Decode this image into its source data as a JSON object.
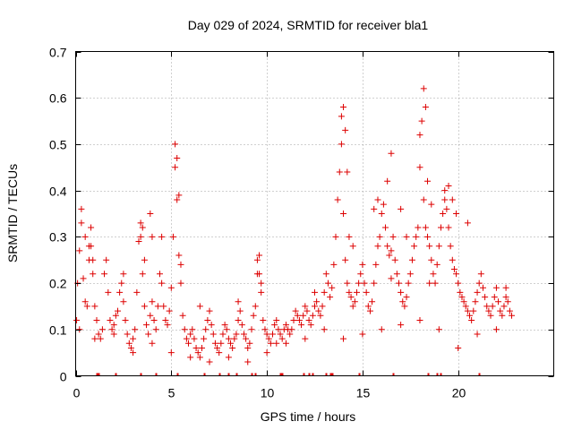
{
  "chart_data": {
    "type": "scatter",
    "title": "Day 029 of 2024, SRMTID for receiver bla1",
    "xlabel": "GPS time / hours",
    "ylabel": "SRMTID / TECUs",
    "xlim": [
      0,
      25
    ],
    "ylim": [
      0,
      0.7
    ],
    "x_ticks": [
      0,
      5,
      10,
      15,
      20
    ],
    "y_ticks": [
      0,
      0.1,
      0.2,
      0.3,
      0.4,
      0.5,
      0.6,
      0.7
    ],
    "x_tick_labels": [
      "0",
      "5",
      "10",
      "15",
      "20"
    ],
    "y_tick_labels": [
      "0",
      "0.1",
      "0.2",
      "0.3",
      "0.4",
      "0.5",
      "0.6",
      "0.7"
    ],
    "grid": true,
    "marker": "plus",
    "color": "#dd0000",
    "series": [
      {
        "name": "SRMTID",
        "x": [
          0.05,
          0.1,
          0.2,
          0.3,
          0.4,
          0.5,
          0.6,
          0.7,
          0.8,
          0.9,
          1.0,
          1.1,
          1.2,
          1.3,
          1.4,
          1.5,
          1.6,
          1.7,
          1.8,
          1.9,
          2.0,
          2.1,
          2.2,
          2.3,
          2.4,
          2.5,
          2.6,
          2.7,
          2.8,
          2.9,
          3.0,
          3.1,
          3.2,
          3.3,
          3.4,
          3.5,
          3.6,
          3.7,
          3.8,
          3.9,
          4.0,
          4.1,
          4.2,
          4.3,
          4.4,
          4.5,
          4.6,
          4.7,
          4.8,
          4.9,
          5.0,
          5.1,
          5.2,
          5.3,
          5.4,
          5.5,
          5.6,
          5.7,
          5.8,
          5.9,
          6.0,
          6.1,
          6.2,
          6.3,
          6.4,
          6.5,
          6.6,
          6.7,
          6.8,
          6.9,
          7.0,
          7.1,
          7.2,
          7.3,
          7.4,
          7.5,
          7.6,
          7.7,
          7.8,
          7.9,
          8.0,
          8.1,
          8.2,
          8.3,
          8.4,
          8.5,
          8.6,
          8.7,
          8.8,
          8.9,
          9.0,
          9.1,
          9.2,
          9.3,
          9.4,
          9.5,
          9.6,
          9.7,
          9.8,
          9.9,
          10.0,
          10.1,
          10.2,
          10.3,
          10.4,
          10.5,
          10.6,
          10.7,
          10.8,
          10.9,
          11.0,
          11.1,
          11.2,
          11.3,
          11.4,
          11.5,
          11.6,
          11.7,
          11.8,
          11.9,
          12.0,
          12.1,
          12.2,
          12.3,
          12.4,
          12.5,
          12.6,
          12.7,
          12.8,
          12.9,
          13.0,
          13.1,
          13.2,
          13.3,
          13.4,
          13.5,
          13.6,
          13.7,
          13.8,
          13.9,
          14.0,
          14.1,
          14.2,
          14.3,
          14.4,
          14.5,
          14.6,
          14.7,
          14.8,
          14.9,
          15.0,
          15.1,
          15.2,
          15.3,
          15.4,
          15.5,
          15.6,
          15.7,
          15.8,
          15.9,
          16.0,
          16.1,
          16.2,
          16.3,
          16.4,
          16.5,
          16.6,
          16.7,
          16.8,
          16.9,
          17.0,
          17.1,
          17.2,
          17.3,
          17.4,
          17.5,
          17.6,
          17.7,
          17.8,
          17.9,
          18.0,
          18.1,
          18.2,
          18.3,
          18.4,
          18.5,
          18.6,
          18.7,
          18.8,
          18.9,
          19.0,
          19.1,
          19.2,
          19.3,
          19.4,
          19.5,
          19.6,
          19.7,
          19.8,
          19.9,
          20.0,
          20.1,
          20.2,
          20.3,
          20.4,
          20.5,
          20.6,
          20.7,
          20.8,
          20.9,
          21.0,
          21.1,
          21.2,
          21.3,
          21.4,
          21.5,
          21.6,
          21.7,
          21.8,
          21.9,
          22.0,
          22.1,
          22.2,
          22.3,
          22.4,
          22.5,
          22.6,
          22.7,
          22.8,
          0.3,
          0.5,
          0.7,
          0.9,
          3.4,
          3.5,
          3.6,
          3.9,
          4.0,
          5.2,
          5.3,
          5.4,
          5.5,
          9.5,
          9.6,
          9.7,
          13.9,
          14.0,
          14.1,
          14.2,
          14.3,
          15.6,
          15.8,
          16.3,
          16.5,
          17.0,
          17.3,
          18.0,
          18.2,
          18.3,
          18.4,
          18.6,
          19.3,
          19.5,
          19.7,
          19.9,
          0.2,
          1.0,
          2.0,
          3.0,
          4.0,
          5.0,
          6.0,
          7.0,
          8.0,
          9.0,
          10.0,
          11.0,
          12.0,
          13.0,
          14.0,
          15.0,
          16.0,
          17.0,
          18.0,
          19.0,
          20.0,
          21.0,
          22.0,
          0.8,
          2.5,
          4.5,
          6.5,
          8.5,
          10.5,
          12.5,
          14.5,
          16.5,
          18.5,
          20.5,
          22.5
        ],
        "y": [
          0.12,
          0.2,
          0.27,
          0.33,
          0.21,
          0.16,
          0.15,
          0.25,
          0.32,
          0.22,
          0.15,
          0.12,
          0.09,
          0.08,
          0.1,
          0.22,
          0.25,
          0.18,
          0.12,
          0.1,
          0.09,
          0.13,
          0.14,
          0.18,
          0.2,
          0.16,
          0.12,
          0.09,
          0.07,
          0.06,
          0.08,
          0.1,
          0.18,
          0.29,
          0.33,
          0.22,
          0.15,
          0.11,
          0.09,
          0.13,
          0.16,
          0.12,
          0.1,
          0.15,
          0.22,
          0.2,
          0.15,
          0.12,
          0.11,
          0.14,
          0.19,
          0.3,
          0.45,
          0.38,
          0.26,
          0.2,
          0.13,
          0.1,
          0.08,
          0.07,
          0.09,
          0.1,
          0.08,
          0.06,
          0.05,
          0.04,
          0.06,
          0.08,
          0.1,
          0.12,
          0.14,
          0.11,
          0.09,
          0.07,
          0.06,
          0.05,
          0.07,
          0.09,
          0.11,
          0.1,
          0.08,
          0.07,
          0.06,
          0.08,
          0.09,
          0.12,
          0.14,
          0.11,
          0.09,
          0.08,
          0.06,
          0.07,
          0.1,
          0.13,
          0.15,
          0.22,
          0.26,
          0.18,
          0.12,
          0.1,
          0.09,
          0.08,
          0.07,
          0.09,
          0.11,
          0.12,
          0.1,
          0.09,
          0.08,
          0.1,
          0.11,
          0.1,
          0.09,
          0.1,
          0.12,
          0.14,
          0.13,
          0.12,
          0.11,
          0.13,
          0.15,
          0.14,
          0.12,
          0.11,
          0.13,
          0.15,
          0.16,
          0.14,
          0.13,
          0.15,
          0.18,
          0.22,
          0.2,
          0.17,
          0.19,
          0.24,
          0.3,
          0.38,
          0.44,
          0.5,
          0.35,
          0.25,
          0.2,
          0.18,
          0.17,
          0.15,
          0.16,
          0.18,
          0.2,
          0.22,
          0.24,
          0.2,
          0.18,
          0.15,
          0.14,
          0.16,
          0.2,
          0.24,
          0.28,
          0.3,
          0.35,
          0.37,
          0.32,
          0.28,
          0.26,
          0.27,
          0.3,
          0.25,
          0.22,
          0.2,
          0.18,
          0.16,
          0.15,
          0.17,
          0.2,
          0.22,
          0.25,
          0.28,
          0.3,
          0.32,
          0.45,
          0.55,
          0.38,
          0.32,
          0.3,
          0.28,
          0.25,
          0.22,
          0.2,
          0.24,
          0.28,
          0.32,
          0.35,
          0.38,
          0.36,
          0.32,
          0.28,
          0.25,
          0.23,
          0.22,
          0.2,
          0.18,
          0.17,
          0.16,
          0.15,
          0.14,
          0.13,
          0.12,
          0.14,
          0.16,
          0.18,
          0.2,
          0.22,
          0.19,
          0.17,
          0.15,
          0.14,
          0.13,
          0.15,
          0.17,
          0.19,
          0.16,
          0.14,
          0.13,
          0.15,
          0.17,
          0.16,
          0.14,
          0.13,
          0.36,
          0.3,
          0.28,
          0.25,
          0.3,
          0.32,
          0.25,
          0.35,
          0.3,
          0.5,
          0.47,
          0.39,
          0.24,
          0.25,
          0.22,
          0.2,
          0.56,
          0.58,
          0.53,
          0.44,
          0.3,
          0.36,
          0.38,
          0.42,
          0.48,
          0.36,
          0.3,
          0.52,
          0.62,
          0.58,
          0.42,
          0.37,
          0.4,
          0.41,
          0.38,
          0.35,
          0.1,
          0.08,
          0.11,
          0.05,
          0.07,
          0.05,
          0.04,
          0.03,
          0.04,
          0.03,
          0.05,
          0.07,
          0.08,
          0.1,
          0.08,
          0.09,
          0.1,
          0.11,
          0.12,
          0.1,
          0.06,
          0.09,
          0.1,
          0.28,
          0.22,
          0.3,
          0.15,
          0.16,
          0.07,
          0.18,
          0.28,
          0.21,
          0.2,
          0.33,
          0.19
        ]
      }
    ],
    "rug_ticks_hours": [
      1.1,
      1.2,
      2.1,
      3.4,
      4.2,
      5.3,
      6.7,
      7.5,
      8.0,
      8.4,
      9.2,
      9.4,
      10.7,
      10.8,
      11.9,
      12.2,
      12.4,
      13.1,
      13.3,
      13.4,
      14.8,
      16.6,
      18.4,
      18.9,
      19.1,
      21.1
    ]
  }
}
